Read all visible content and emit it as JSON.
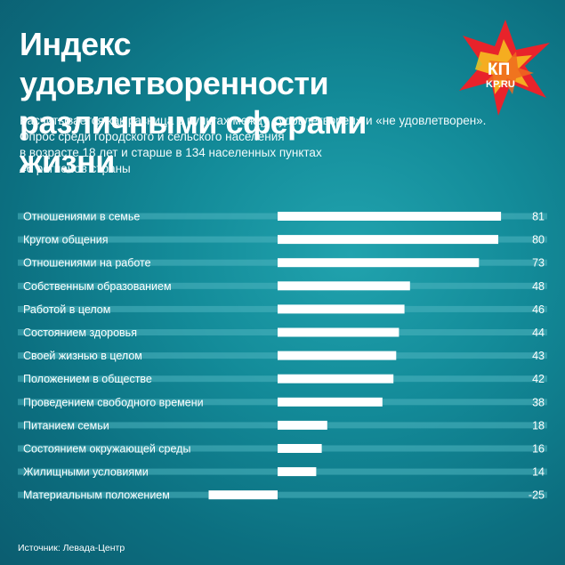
{
  "header": {
    "title_line1": "Индекс удовлетворенности",
    "title_line2": "различными сферами жизни",
    "subtitle_lines": [
      "Расчитывается как разница в пунктах между «удовлетворен» и «не удовлетворен».",
      "Опрос  среди городского и сельского населения",
      "в возрасте 18 лет и старше в 134 населенных пунктах",
      "46 регионов страны"
    ]
  },
  "logo": {
    "text_top": "КП",
    "text_bottom": "KP.RU"
  },
  "footer": {
    "source": "Источник: Левада-Центр"
  },
  "colors": {
    "bar": "#ffffff",
    "row_band": "#4fb4bf",
    "logo_red": "#e8232b",
    "logo_yellow": "#f7c51e",
    "logo_orange": "#ee6a1f"
  },
  "chart_data": {
    "type": "bar",
    "orientation": "horizontal",
    "categories": [
      "Отношениями в семье",
      "Кругом общения",
      "Отношениями на работе",
      "Собственным образованием",
      "Работой в целом",
      "Состоянием здоровья",
      "Своей жизнью в целом",
      "Положением в обществе",
      "Проведением свободного времени",
      "Питанием семьи",
      "Состоянием окружающей среды",
      "Жилищными условиями",
      "Материальным положением"
    ],
    "values": [
      81,
      80,
      73,
      48,
      46,
      44,
      43,
      42,
      38,
      18,
      16,
      14,
      -25
    ],
    "value_labels": [
      "81",
      "80",
      "73",
      "48",
      "46",
      "44",
      "43",
      "42",
      "38",
      "18",
      "16",
      "14",
      "-25"
    ],
    "xlim": [
      -25,
      81
    ],
    "title": "Индекс удовлетворенности различными сферами жизни"
  }
}
